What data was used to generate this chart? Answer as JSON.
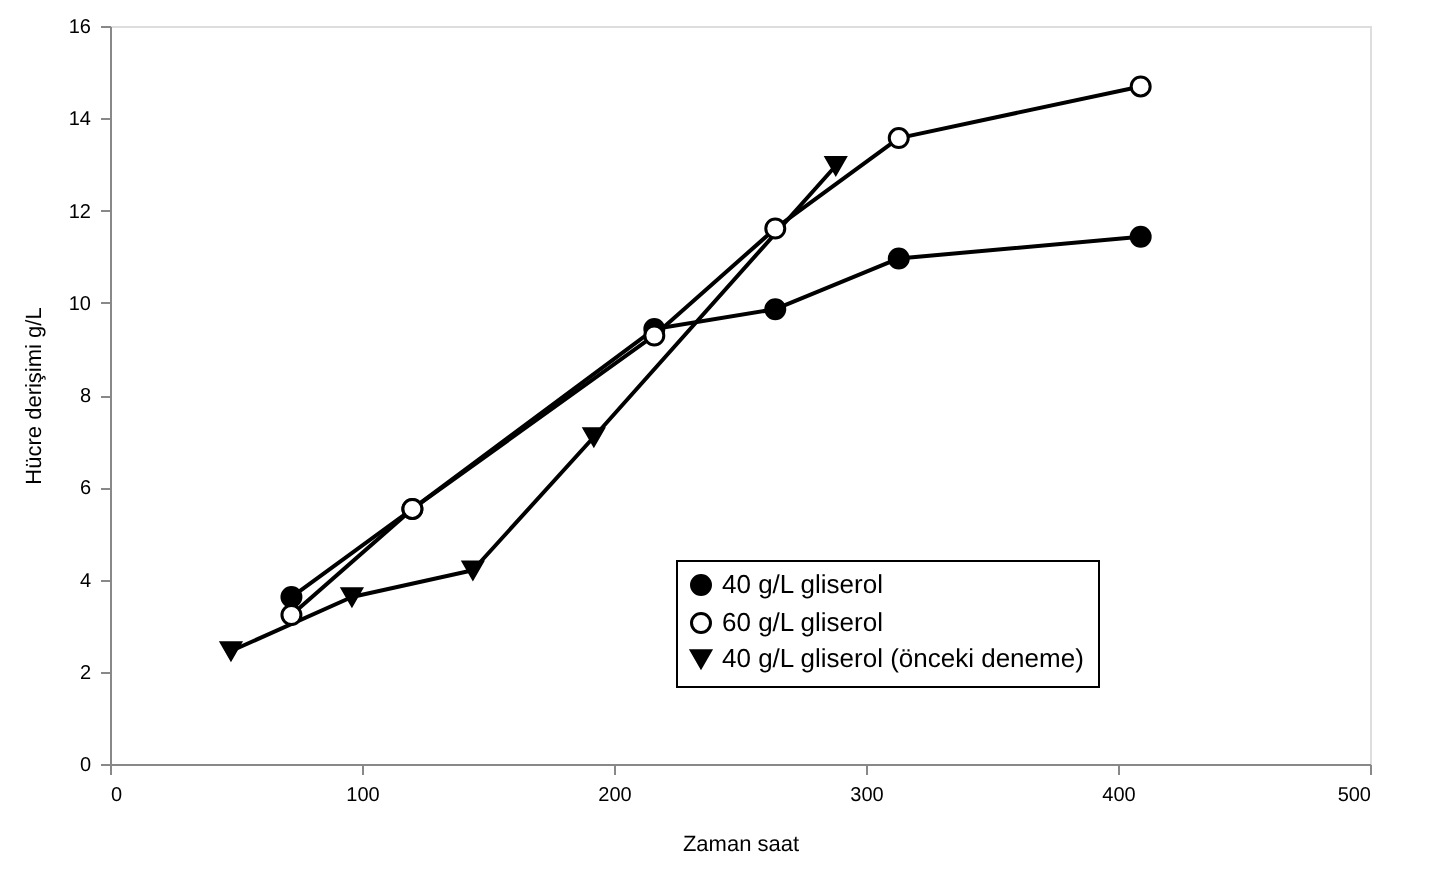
{
  "chart_data": {
    "type": "line",
    "xlabel": "Zaman saat",
    "ylabel": "Hücre derişimi g/L",
    "xlim": [
      0,
      500
    ],
    "xticks": [
      0,
      100,
      200,
      300,
      400,
      500
    ],
    "ylim": [
      0,
      16
    ],
    "yticks": [
      0,
      2,
      4,
      6,
      8,
      10,
      12,
      14,
      16
    ],
    "grid": false,
    "legend": "bottom right",
    "line_style": "solid",
    "series": [
      {
        "name": "40 g/L gliserol",
        "color": "#000000",
        "marker": "circle",
        "x": [
          72,
          120,
          216,
          264,
          313,
          409
        ],
        "values": [
          3.62,
          5.53,
          9.43,
          9.86,
          10.96,
          11.43
        ]
      },
      {
        "name": "60 g/L gliserol",
        "color": "#000000",
        "marker": "circle",
        "x": [
          72,
          120,
          216,
          264,
          313,
          409
        ],
        "values": [
          3.23,
          5.53,
          9.29,
          11.61,
          13.57,
          14.69
        ]
      },
      {
        "name": "40 g/L gliserol (önceki deneme)",
        "color": "#000000",
        "marker": "triangle-down",
        "x": [
          48,
          96,
          144,
          192,
          288
        ],
        "values": [
          2.45,
          3.62,
          4.2,
          7.09,
          12.97
        ]
      }
    ]
  }
}
